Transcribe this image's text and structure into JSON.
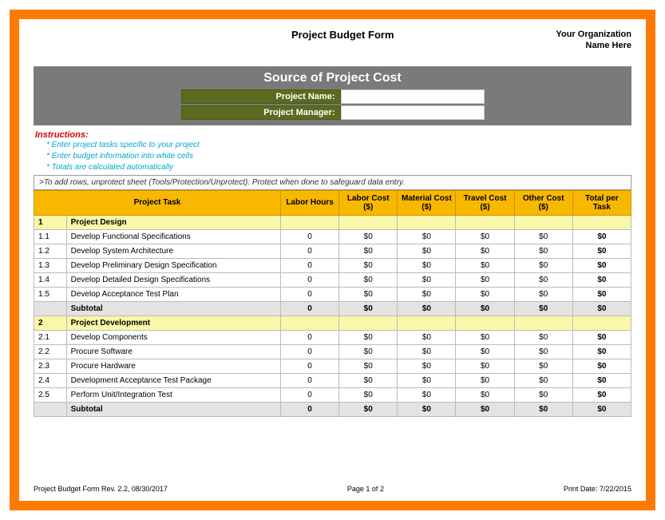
{
  "header": {
    "title": "Project Budget Form",
    "org_line1": "Your Organization",
    "org_line2": "Name Here"
  },
  "banner": {
    "title": "Source of Project Cost",
    "project_name_label": "Project Name:",
    "project_manager_label": "Project Manager:",
    "project_name_value": "",
    "project_manager_value": ""
  },
  "instructions": {
    "heading": "Instructions:",
    "lines": [
      "* Enter project tasks specific to your project",
      "* Enter budget information into white cells",
      "* Totals are calculated automatically"
    ],
    "note": ">To add rows, unprotect sheet (Tools/Protection/Unprotect).  Protect when done to safeguard data entry."
  },
  "table": {
    "columns": [
      "Project Task",
      "Labor Hours",
      "Labor Cost ($)",
      "Material Cost ($)",
      "Travel Cost ($)",
      "Other Cost ($)",
      "Total per Task"
    ],
    "sections": [
      {
        "num": "1",
        "title": "Project Design",
        "rows": [
          {
            "idx": "1.1",
            "task": "Develop Functional Specifications",
            "hours": "0",
            "labor": "$0",
            "material": "$0",
            "travel": "$0",
            "other": "$0",
            "total": "$0"
          },
          {
            "idx": "1.2",
            "task": "Develop System Architecture",
            "hours": "0",
            "labor": "$0",
            "material": "$0",
            "travel": "$0",
            "other": "$0",
            "total": "$0"
          },
          {
            "idx": "1.3",
            "task": "Develop Preliminary Design Specification",
            "hours": "0",
            "labor": "$0",
            "material": "$0",
            "travel": "$0",
            "other": "$0",
            "total": "$0"
          },
          {
            "idx": "1.4",
            "task": "Develop Detailed Design Specifications",
            "hours": "0",
            "labor": "$0",
            "material": "$0",
            "travel": "$0",
            "other": "$0",
            "total": "$0"
          },
          {
            "idx": "1.5",
            "task": "Develop Acceptance Test Plan",
            "hours": "0",
            "labor": "$0",
            "material": "$0",
            "travel": "$0",
            "other": "$0",
            "total": "$0"
          }
        ],
        "subtotal": {
          "label": "Subtotal",
          "hours": "0",
          "labor": "$0",
          "material": "$0",
          "travel": "$0",
          "other": "$0",
          "total": "$0"
        }
      },
      {
        "num": "2",
        "title": "Project Development",
        "rows": [
          {
            "idx": "2.1",
            "task": "Develop Components",
            "hours": "0",
            "labor": "$0",
            "material": "$0",
            "travel": "$0",
            "other": "$0",
            "total": "$0"
          },
          {
            "idx": "2.2",
            "task": "Procure Software",
            "hours": "0",
            "labor": "$0",
            "material": "$0",
            "travel": "$0",
            "other": "$0",
            "total": "$0"
          },
          {
            "idx": "2.3",
            "task": "Procure Hardware",
            "hours": "0",
            "labor": "$0",
            "material": "$0",
            "travel": "$0",
            "other": "$0",
            "total": "$0"
          },
          {
            "idx": "2.4",
            "task": "Development Acceptance Test Package",
            "hours": "0",
            "labor": "$0",
            "material": "$0",
            "travel": "$0",
            "other": "$0",
            "total": "$0"
          },
          {
            "idx": "2.5",
            "task": "Perform Unit/Integration Test",
            "hours": "0",
            "labor": "$0",
            "material": "$0",
            "travel": "$0",
            "other": "$0",
            "total": "$0"
          }
        ],
        "subtotal": {
          "label": "Subtotal",
          "hours": "0",
          "labor": "$0",
          "material": "$0",
          "travel": "$0",
          "other": "$0",
          "total": "$0"
        }
      }
    ]
  },
  "footer": {
    "left": "Project Budget Form Rev. 2.2, 08/30/2017",
    "center": "Page 1 of 2",
    "right": "Print Date: 7/22/2015"
  },
  "colors": {
    "frame": "#ff7a00",
    "banner_bg": "#7a7a7a",
    "meta_bg": "#5a6b1f",
    "header_row_bg": "#f9b800",
    "section_bg": "#faf8a8",
    "subtotal_bg": "#e3e3e3",
    "instr_head": "#d00000",
    "instr_line": "#00a8c8"
  }
}
